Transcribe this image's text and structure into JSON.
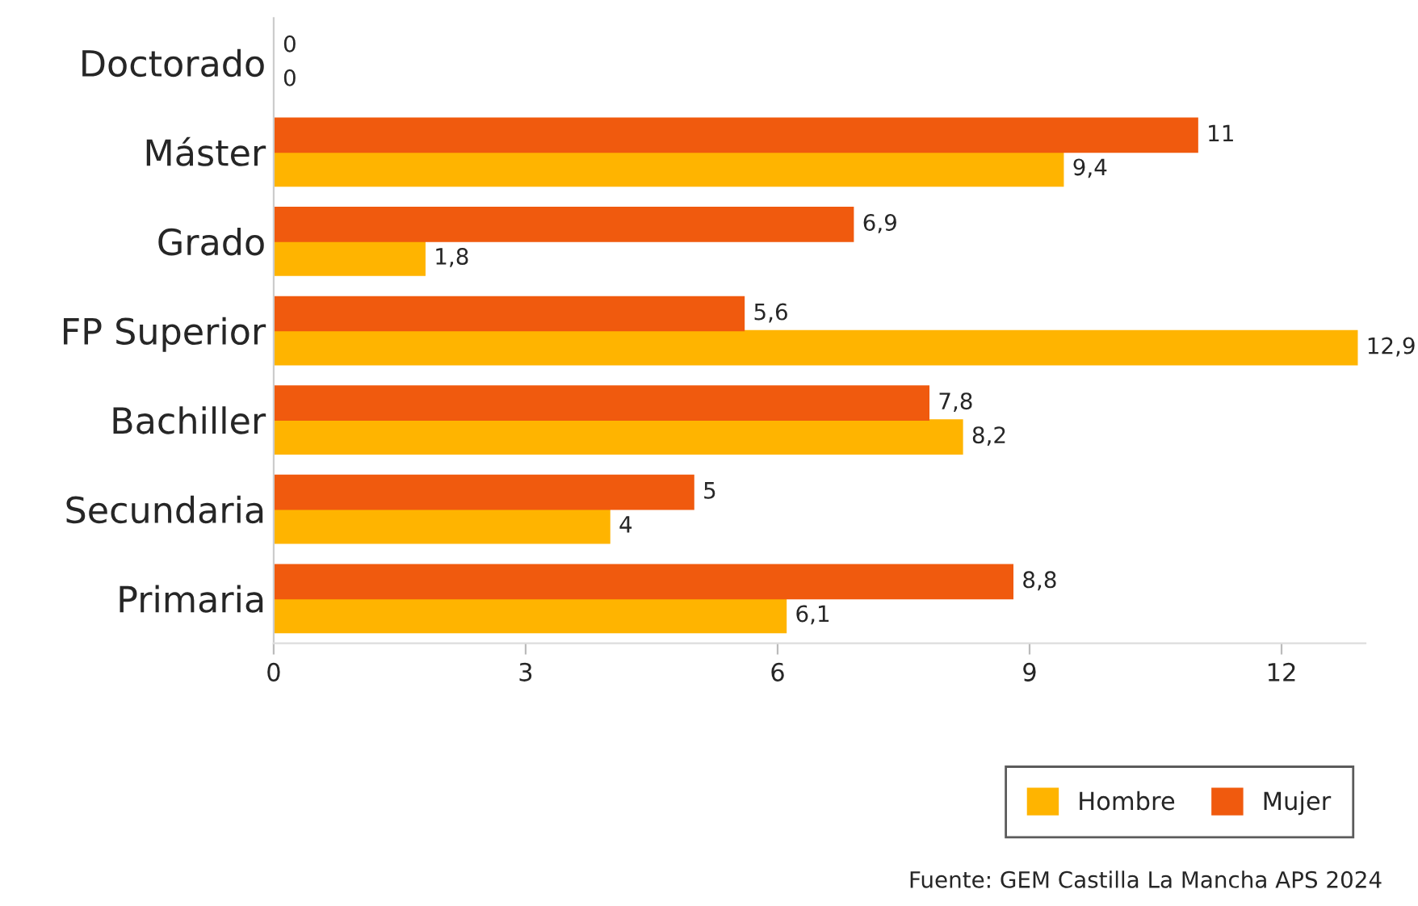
{
  "chart_data": {
    "type": "bar",
    "orientation": "horizontal",
    "categories": [
      "Doctorado",
      "Máster",
      "Grado",
      "FP Superior",
      "Bachiller",
      "Secundaria",
      "Primaria"
    ],
    "series": [
      {
        "name": "Hombre",
        "color": "#ffb400",
        "values": [
          0,
          9.4,
          1.8,
          12.9,
          8.2,
          4,
          6.1
        ],
        "value_labels": [
          "0",
          "9,4",
          "1,8",
          "12,9",
          "8,2",
          "4",
          "6,1"
        ]
      },
      {
        "name": "Mujer",
        "color": "#f05a0e",
        "values": [
          0,
          11,
          6.9,
          5.6,
          7.8,
          5,
          8.8
        ],
        "value_labels": [
          "0",
          "11",
          "6,9",
          "5,6",
          "7,8",
          "5",
          "8,8"
        ]
      }
    ],
    "xlim": [
      0,
      13
    ],
    "xticks": [
      0,
      3,
      6,
      9,
      12
    ],
    "grid": false,
    "legend": "bottom right",
    "annotations": [
      "Fuente: GEM Castilla La Mancha APS 2024"
    ]
  }
}
